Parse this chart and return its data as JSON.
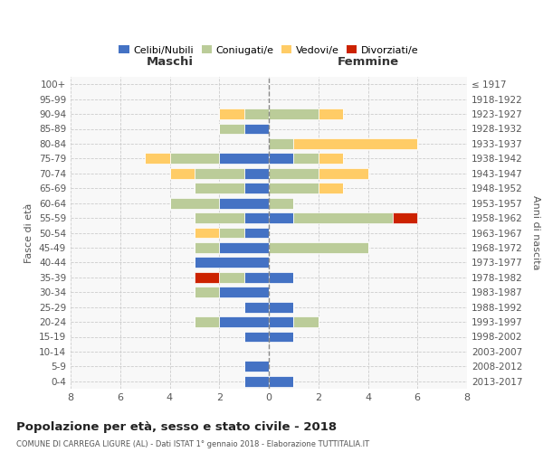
{
  "age_groups": [
    "0-4",
    "5-9",
    "10-14",
    "15-19",
    "20-24",
    "25-29",
    "30-34",
    "35-39",
    "40-44",
    "45-49",
    "50-54",
    "55-59",
    "60-64",
    "65-69",
    "70-74",
    "75-79",
    "80-84",
    "85-89",
    "90-94",
    "95-99",
    "100+"
  ],
  "birth_years": [
    "2013-2017",
    "2008-2012",
    "2003-2007",
    "1998-2002",
    "1993-1997",
    "1988-1992",
    "1983-1987",
    "1978-1982",
    "1973-1977",
    "1968-1972",
    "1963-1967",
    "1958-1962",
    "1953-1957",
    "1948-1952",
    "1943-1947",
    "1938-1942",
    "1933-1937",
    "1928-1932",
    "1923-1927",
    "1918-1922",
    "≤ 1917"
  ],
  "maschi": {
    "celibi": [
      1,
      1,
      0,
      1,
      2,
      1,
      2,
      1,
      3,
      2,
      1,
      1,
      2,
      1,
      1,
      2,
      0,
      1,
      0,
      0,
      0
    ],
    "coniugati": [
      0,
      0,
      0,
      0,
      1,
      0,
      1,
      1,
      0,
      1,
      1,
      2,
      2,
      2,
      2,
      2,
      0,
      1,
      1,
      0,
      0
    ],
    "vedovi": [
      0,
      0,
      0,
      0,
      0,
      0,
      0,
      0,
      0,
      0,
      1,
      0,
      0,
      0,
      1,
      1,
      0,
      0,
      1,
      0,
      0
    ],
    "divorziati": [
      0,
      0,
      0,
      0,
      0,
      0,
      0,
      1,
      0,
      0,
      0,
      0,
      0,
      0,
      0,
      0,
      0,
      0,
      0,
      0,
      0
    ]
  },
  "femmine": {
    "celibi": [
      1,
      0,
      0,
      1,
      1,
      1,
      0,
      1,
      0,
      0,
      0,
      1,
      0,
      0,
      0,
      1,
      0,
      0,
      0,
      0,
      0
    ],
    "coniugati": [
      0,
      0,
      0,
      0,
      1,
      0,
      0,
      0,
      0,
      4,
      0,
      4,
      1,
      2,
      2,
      1,
      1,
      0,
      2,
      0,
      0
    ],
    "vedovi": [
      0,
      0,
      0,
      0,
      0,
      0,
      0,
      0,
      0,
      0,
      0,
      0,
      0,
      1,
      2,
      1,
      5,
      0,
      1,
      0,
      0
    ],
    "divorziati": [
      0,
      0,
      0,
      0,
      0,
      0,
      0,
      0,
      0,
      0,
      0,
      1,
      0,
      0,
      0,
      0,
      0,
      0,
      0,
      0,
      0
    ]
  },
  "colors": {
    "celibi": "#4472C4",
    "coniugati": "#BBCC99",
    "vedovi": "#FFCC66",
    "divorziati": "#CC2200"
  },
  "xlim": 8,
  "title": "Popolazione per età, sesso e stato civile - 2018",
  "subtitle": "COMUNE DI CARREGA LIGURE (AL) - Dati ISTAT 1° gennaio 2018 - Elaborazione TUTTITALIA.IT",
  "xlabel_left": "Maschi",
  "xlabel_right": "Femmine",
  "ylabel_left": "Fasce di età",
  "ylabel_right": "Anni di nascita",
  "legend_labels": [
    "Celibi/Nubili",
    "Coniugati/e",
    "Vedovi/e",
    "Divorziati/e"
  ],
  "bg_color": "#FFFFFF",
  "plot_bg": "#F8F8F8"
}
